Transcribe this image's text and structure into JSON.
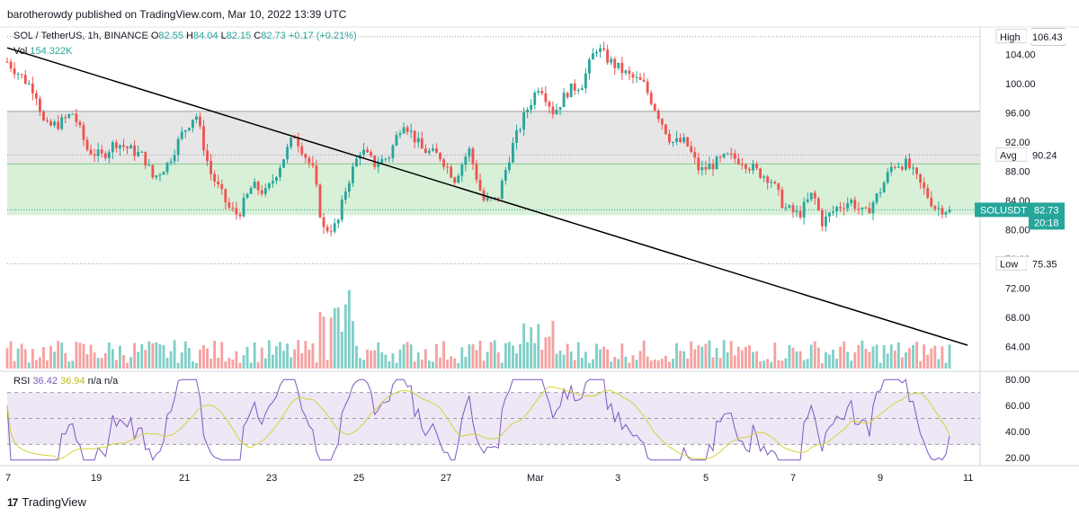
{
  "publisher": "barotherowdy published on TradingView.com, Mar 10, 2022 13:39 UTC",
  "legend": {
    "symbol": "SOL / TetherUS, 1h, BINANCE",
    "open_label": "O",
    "open": "82.55",
    "high_label": "H",
    "high": "84.04",
    "low_label": "L",
    "low": "82.15",
    "close_label": "C",
    "close": "82.73",
    "change": "+0.17 (+0.21%)",
    "vol_label": "Vol",
    "vol": "154.322K"
  },
  "currency": "USDT",
  "rsi_legend": {
    "label": "RSI",
    "rsi": "36.42",
    "ma": "36.94",
    "na1": "n/a",
    "na2": "n/a"
  },
  "price_axis": {
    "ticks": [
      "104.00",
      "100.00",
      "96.00",
      "92.00",
      "88.00",
      "84.00",
      "80.00",
      "76.00",
      "72.00",
      "68.00",
      "64.00"
    ],
    "tick_values": [
      104,
      100,
      96,
      92,
      88,
      84,
      80,
      76,
      72,
      68,
      64
    ],
    "high_label": "High",
    "high_value": "106.43",
    "avg_label": "Avg",
    "avg_value": "90.24",
    "low_label": "Low",
    "low_value": "75.35",
    "current_symbol": "SOLUSDT",
    "current_price": "82.73",
    "countdown": "20:18"
  },
  "rsi_axis": {
    "ticks": [
      "80.00",
      "60.00",
      "40.00",
      "20.00"
    ],
    "tick_values": [
      80,
      60,
      40,
      20
    ]
  },
  "time_axis": {
    "labels": [
      "7",
      "19",
      "21",
      "23",
      "25",
      "27",
      "Mar",
      "3",
      "5",
      "7",
      "9",
      "11"
    ]
  },
  "logo": "TradingView",
  "colors": {
    "up": "#26a69a",
    "down": "#ef5350",
    "rsi": "#7e57c2",
    "rsi_ma": "#d4d43a",
    "grey_zone": "#e6e6e6",
    "green_zone": "#d8f0d8",
    "trendline": "#000000"
  },
  "chart_data": {
    "type": "candlestick",
    "symbol": "SOL / TetherUS, 1h, BINANCE",
    "ylim": [
      61,
      108
    ],
    "grey_zone": [
      89,
      96.2
    ],
    "green_zone": [
      82,
      89
    ],
    "trendline": [
      {
        "x": "Feb 17",
        "y": 104.9
      },
      {
        "x": "Mar 10",
        "y": 64.2
      }
    ],
    "high": 106.43,
    "avg": 90.24,
    "low": 75.35,
    "last": 82.73,
    "price_path": [
      {
        "t": 0,
        "p": 103
      },
      {
        "t": 0.03,
        "p": 99
      },
      {
        "t": 0.04,
        "p": 94
      },
      {
        "t": 0.055,
        "p": 94.5
      },
      {
        "t": 0.07,
        "p": 96
      },
      {
        "t": 0.085,
        "p": 91
      },
      {
        "t": 0.1,
        "p": 90
      },
      {
        "t": 0.115,
        "p": 92
      },
      {
        "t": 0.13,
        "p": 91
      },
      {
        "t": 0.145,
        "p": 90
      },
      {
        "t": 0.155,
        "p": 87
      },
      {
        "t": 0.17,
        "p": 89
      },
      {
        "t": 0.185,
        "p": 93
      },
      {
        "t": 0.2,
        "p": 96
      },
      {
        "t": 0.215,
        "p": 88
      },
      {
        "t": 0.235,
        "p": 83
      },
      {
        "t": 0.245,
        "p": 82
      },
      {
        "t": 0.26,
        "p": 86
      },
      {
        "t": 0.275,
        "p": 85
      },
      {
        "t": 0.29,
        "p": 89
      },
      {
        "t": 0.305,
        "p": 93
      },
      {
        "t": 0.325,
        "p": 88
      },
      {
        "t": 0.335,
        "p": 80
      },
      {
        "t": 0.35,
        "p": 80.5
      },
      {
        "t": 0.36,
        "p": 86
      },
      {
        "t": 0.375,
        "p": 91
      },
      {
        "t": 0.39,
        "p": 89
      },
      {
        "t": 0.405,
        "p": 90
      },
      {
        "t": 0.42,
        "p": 95
      },
      {
        "t": 0.44,
        "p": 91
      },
      {
        "t": 0.46,
        "p": 90
      },
      {
        "t": 0.475,
        "p": 87
      },
      {
        "t": 0.49,
        "p": 91
      },
      {
        "t": 0.505,
        "p": 84
      },
      {
        "t": 0.52,
        "p": 84
      },
      {
        "t": 0.535,
        "p": 91
      },
      {
        "t": 0.55,
        "p": 96
      },
      {
        "t": 0.565,
        "p": 100
      },
      {
        "t": 0.58,
        "p": 96
      },
      {
        "t": 0.595,
        "p": 99
      },
      {
        "t": 0.61,
        "p": 100
      },
      {
        "t": 0.625,
        "p": 105
      },
      {
        "t": 0.64,
        "p": 103
      },
      {
        "t": 0.66,
        "p": 101
      },
      {
        "t": 0.675,
        "p": 100
      },
      {
        "t": 0.69,
        "p": 96
      },
      {
        "t": 0.705,
        "p": 92
      },
      {
        "t": 0.72,
        "p": 92
      },
      {
        "t": 0.735,
        "p": 88
      },
      {
        "t": 0.75,
        "p": 89
      },
      {
        "t": 0.765,
        "p": 90
      },
      {
        "t": 0.78,
        "p": 89.5
      },
      {
        "t": 0.795,
        "p": 88
      },
      {
        "t": 0.81,
        "p": 87
      },
      {
        "t": 0.825,
        "p": 83
      },
      {
        "t": 0.84,
        "p": 82
      },
      {
        "t": 0.855,
        "p": 85
      },
      {
        "t": 0.865,
        "p": 81
      },
      {
        "t": 0.88,
        "p": 83
      },
      {
        "t": 0.895,
        "p": 84
      },
      {
        "t": 0.91,
        "p": 82
      },
      {
        "t": 0.925,
        "p": 85
      },
      {
        "t": 0.94,
        "p": 89
      },
      {
        "t": 0.955,
        "p": 89
      },
      {
        "t": 0.97,
        "p": 86
      },
      {
        "t": 0.985,
        "p": 83
      },
      {
        "t": 1,
        "p": 82.73
      }
    ],
    "rsi": {
      "ylim": [
        15,
        85
      ],
      "upper": 70,
      "middle": 50,
      "lower": 30,
      "last": 36.42,
      "ma_last": 36.94
    }
  }
}
